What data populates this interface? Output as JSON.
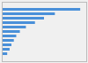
{
  "chart_data": {
    "type": "bar",
    "orientation": "horizontal",
    "categories": [
      null,
      null,
      null,
      null,
      null,
      null,
      null,
      null,
      null,
      null,
      null
    ],
    "values": [
      130,
      88,
      70,
      55,
      40,
      30,
      24,
      20,
      16,
      13,
      9
    ],
    "color": "#4a90d9",
    "xlim": [
      0,
      140
    ],
    "tick_labels": false
  }
}
